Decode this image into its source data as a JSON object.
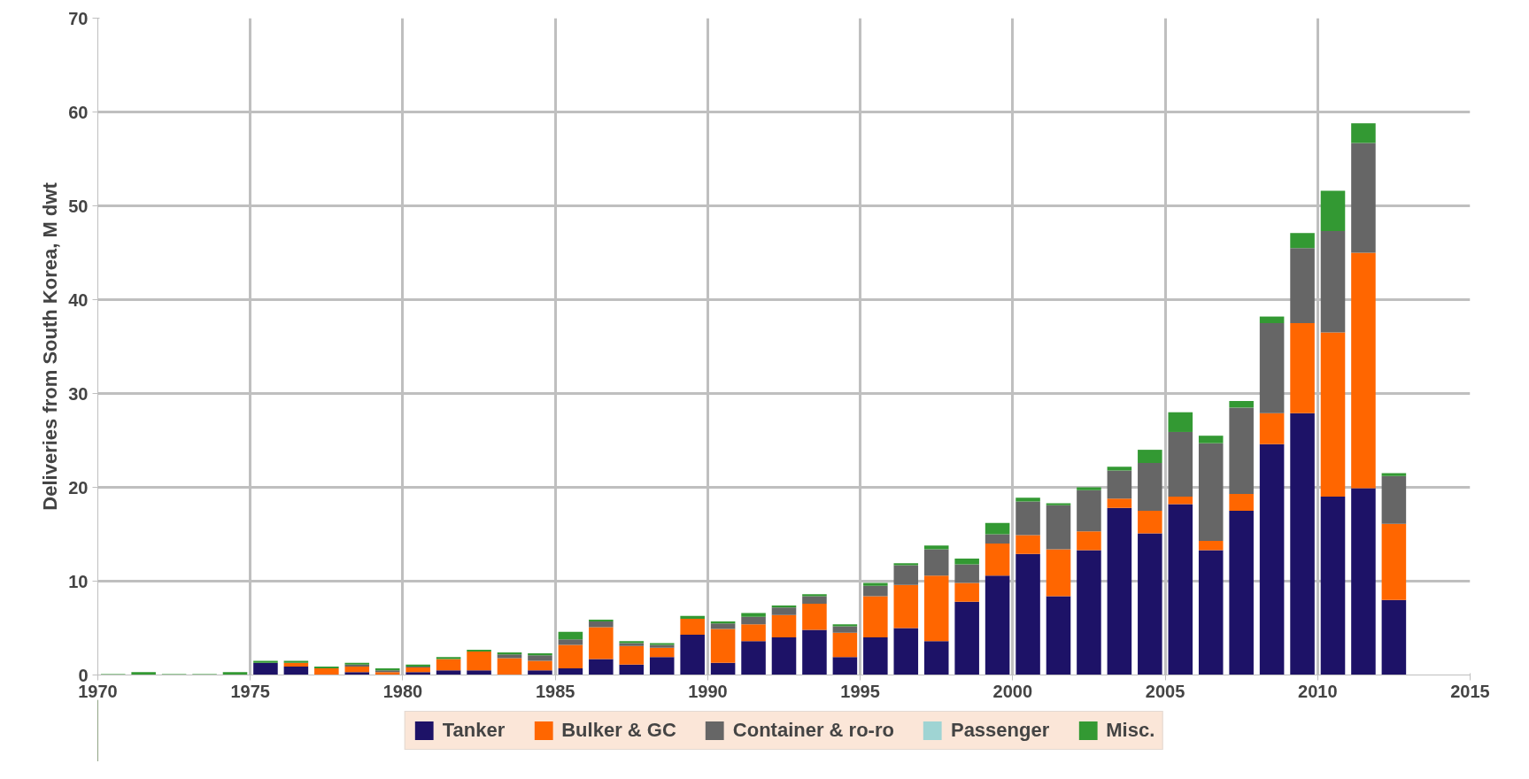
{
  "chart_data": {
    "type": "bar",
    "stacked": true,
    "ylabel": "Deliveries from South Korea, M dwt",
    "x": [
      1970.5,
      1971.5,
      1972.5,
      1973.5,
      1974.5,
      1975.5,
      1976.5,
      1977.5,
      1978.5,
      1979.5,
      1980.5,
      1981.5,
      1982.5,
      1983.5,
      1984.5,
      1985.5,
      1986.5,
      1987.5,
      1988.5,
      1989.5,
      1990.5,
      1991.5,
      1992.5,
      1993.5,
      1994.5,
      1995.5,
      1996.5,
      1997.5,
      1998.5,
      1999.5,
      2000.5,
      2001.5,
      2002.5,
      2003.5,
      2004.5,
      2005.5,
      2006.5,
      2007.5,
      2008.5,
      2009.5,
      2010.5,
      2011.5,
      2012.5
    ],
    "series": [
      {
        "name": "Tanker",
        "color": "#1d1267",
        "values": [
          0,
          0,
          0,
          0,
          0,
          1.3,
          0.9,
          0,
          0.3,
          0,
          0.3,
          0.5,
          0.5,
          0,
          0.5,
          0.7,
          1.7,
          1.1,
          1.9,
          4.3,
          1.3,
          3.6,
          4.0,
          4.8,
          1.9,
          4.0,
          5.0,
          3.6,
          7.8,
          10.6,
          12.9,
          8.4,
          13.3,
          17.8,
          15.1,
          18.2,
          13.3,
          17.5,
          24.6,
          27.9,
          19.0,
          19.9,
          8.0
        ]
      },
      {
        "name": "Bulker & GC",
        "color": "#ff6600",
        "values": [
          0,
          0,
          0,
          0,
          0,
          0,
          0.4,
          0.7,
          0.6,
          0.3,
          0.5,
          1.2,
          2.0,
          1.8,
          1.0,
          2.5,
          3.4,
          2.0,
          1.0,
          1.7,
          3.6,
          1.8,
          2.4,
          2.8,
          2.6,
          4.4,
          4.6,
          7.0,
          2.0,
          3.4,
          2.0,
          5.0,
          2.0,
          1.0,
          2.4,
          0.8,
          1.0,
          1.8,
          3.3,
          9.6,
          17.5,
          25.1,
          8.1
        ]
      },
      {
        "name": "Container & ro-ro",
        "color": "#666666",
        "values": [
          0,
          0,
          0,
          0,
          0,
          0,
          0,
          0,
          0.2,
          0.2,
          0.1,
          0,
          0,
          0.4,
          0.6,
          0.6,
          0.6,
          0.3,
          0.3,
          0,
          0.6,
          0.8,
          0.8,
          0.8,
          0.7,
          1.1,
          2.1,
          2.8,
          2.0,
          1.0,
          3.6,
          4.7,
          4.4,
          3.0,
          5.1,
          6.9,
          10.4,
          9.2,
          9.6,
          8.0,
          10.8,
          11.7,
          5.1
        ]
      },
      {
        "name": "Passenger",
        "color": "#9fd4d3",
        "values": [
          0,
          0,
          0,
          0,
          0,
          0,
          0,
          0,
          0,
          0,
          0,
          0,
          0,
          0,
          0,
          0,
          0,
          0,
          0,
          0,
          0,
          0,
          0,
          0,
          0,
          0,
          0,
          0,
          0,
          0,
          0,
          0,
          0,
          0,
          0,
          0,
          0,
          0,
          0,
          0,
          0,
          0,
          0
        ]
      },
      {
        "name": "Misc.",
        "color": "#339933",
        "values": [
          0.1,
          0.3,
          0.1,
          0.1,
          0.3,
          0.2,
          0.2,
          0.2,
          0.2,
          0.2,
          0.2,
          0.2,
          0.2,
          0.2,
          0.2,
          0.8,
          0.2,
          0.2,
          0.2,
          0.3,
          0.2,
          0.4,
          0.2,
          0.2,
          0.2,
          0.3,
          0.2,
          0.4,
          0.6,
          1.2,
          0.4,
          0.2,
          0.3,
          0.4,
          1.4,
          2.1,
          0.8,
          0.7,
          0.7,
          1.6,
          4.3,
          2.1,
          0.3
        ]
      }
    ],
    "xlim": [
      1970,
      2015
    ],
    "xticks": [
      1970,
      1975,
      1980,
      1985,
      1990,
      1995,
      2000,
      2005,
      2010,
      2015
    ],
    "ylim": [
      0,
      70
    ],
    "yticks": [
      0,
      10,
      20,
      30,
      40,
      50,
      60,
      70
    ],
    "grid": true,
    "legend": "bottom"
  }
}
